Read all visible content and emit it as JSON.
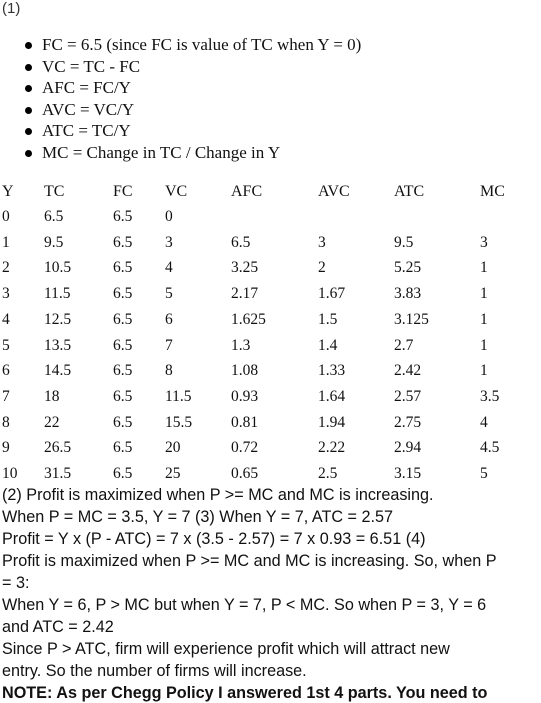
{
  "part1_label": "(1)",
  "formulas": [
    "FC = 6.5 (since FC is value of TC when Y = 0)",
    "VC = TC - FC",
    "AFC = FC/Y",
    "AVC = VC/Y",
    "ATC = TC/Y",
    "MC = Change in TC / Change in Y"
  ],
  "table": {
    "headers": [
      "Y",
      "TC",
      "FC",
      "VC",
      "AFC",
      "AVC",
      "ATC",
      "MC"
    ],
    "rows": [
      [
        "0",
        "6.5",
        "6.5",
        "0",
        "",
        "",
        "",
        ""
      ],
      [
        "1",
        "9.5",
        "6.5",
        "3",
        "6.5",
        "3",
        "9.5",
        "3"
      ],
      [
        "2",
        "10.5",
        "6.5",
        "4",
        "3.25",
        "2",
        "5.25",
        "1"
      ],
      [
        "3",
        "11.5",
        "6.5",
        "5",
        "2.17",
        "1.67",
        "3.83",
        "1"
      ],
      [
        "4",
        "12.5",
        "6.5",
        "6",
        "1.625",
        "1.5",
        "3.125",
        "1"
      ],
      [
        "5",
        "13.5",
        "6.5",
        "7",
        "1.3",
        "1.4",
        "2.7",
        "1"
      ],
      [
        "6",
        "14.5",
        "6.5",
        "8",
        "1.08",
        "1.33",
        "2.42",
        "1"
      ],
      [
        "7",
        "18",
        "6.5",
        "11.5",
        "0.93",
        "1.64",
        "2.57",
        "3.5"
      ],
      [
        "8",
        "22",
        "6.5",
        "15.5",
        "0.81",
        "1.94",
        "2.75",
        "4"
      ],
      [
        "9",
        "26.5",
        "6.5",
        "20",
        "0.72",
        "2.22",
        "2.94",
        "4.5"
      ],
      [
        "10",
        "31.5",
        "6.5",
        "25",
        "0.65",
        "2.5",
        "3.15",
        "5"
      ]
    ]
  },
  "lines": [
    "(2) Profit is maximized when P >= MC and MC is increasing.",
    "When P = MC = 3.5, Y = 7 (3) When Y = 7, ATC = 2.57",
    "Profit = Y x (P - ATC) = 7 x (3.5 - 2.57) = 7 x 0.93 = 6.51 (4)",
    "Profit is maximized when P >= MC and MC is increasing. So, when P",
    "= 3:",
    "When Y = 6, P > MC but when Y = 7, P < MC. So when P = 3, Y = 6",
    "and ATC = 2.42",
    "Since P > ATC, firm will experience profit which will attract new",
    "entry. So the number of firms will increase."
  ],
  "note": "NOTE: As per Chegg Policy I answered 1st 4 parts. You need to"
}
